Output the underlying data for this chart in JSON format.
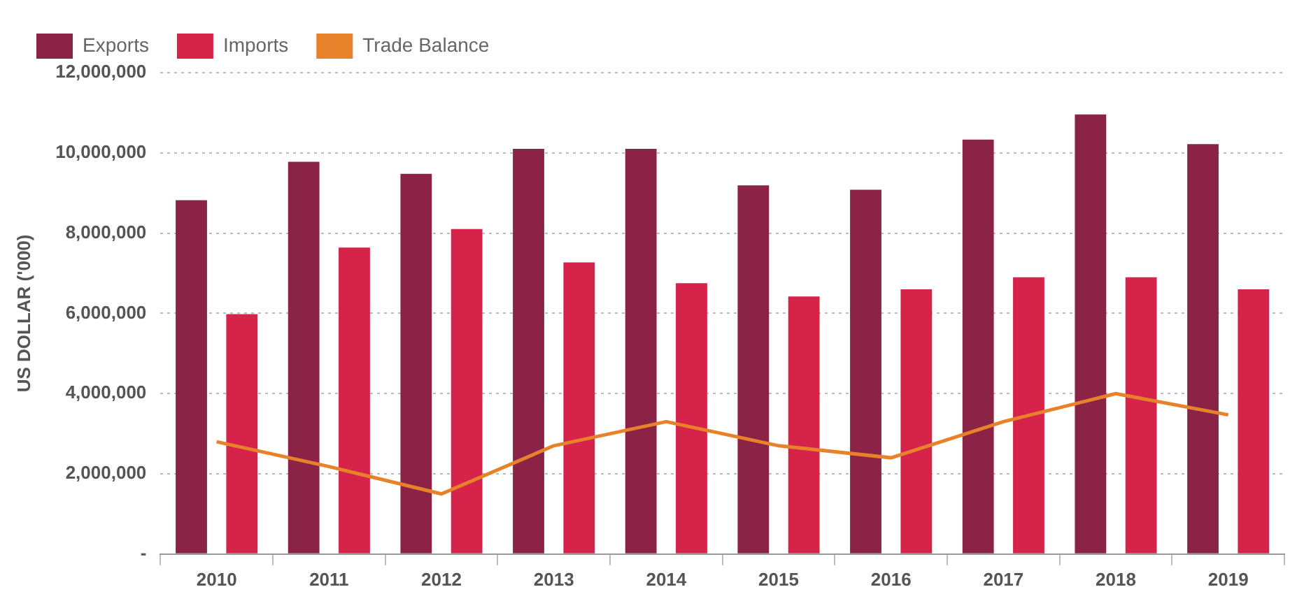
{
  "chart_data": {
    "type": "bar",
    "ylabel": "US DOLLAR ('000)",
    "categories": [
      "2010",
      "2011",
      "2012",
      "2013",
      "2014",
      "2015",
      "2016",
      "2017",
      "2018",
      "2019"
    ],
    "series": [
      {
        "name": "Exports",
        "color": "#8b2346",
        "values": [
          8820000,
          9780000,
          9480000,
          10100000,
          10100000,
          9190000,
          9080000,
          10330000,
          10960000,
          10220000
        ]
      },
      {
        "name": "Imports",
        "color": "#d6234a",
        "values": [
          5980000,
          7640000,
          8100000,
          7270000,
          6750000,
          6420000,
          6600000,
          6900000,
          6900000,
          6600000
        ]
      },
      {
        "name": "Trade Balance",
        "type": "line",
        "color": "#e8822a",
        "values": [
          2800000,
          2180000,
          1500000,
          2700000,
          3300000,
          2700000,
          2400000,
          3300000,
          4000000,
          3470000
        ]
      }
    ],
    "ylim": [
      0,
      12000000
    ],
    "yticks": [
      {
        "value": 0,
        "label": "-"
      },
      {
        "value": 2000000,
        "label": "2,000,000"
      },
      {
        "value": 4000000,
        "label": "4,000,000"
      },
      {
        "value": 6000000,
        "label": "6,000,000"
      },
      {
        "value": 8000000,
        "label": "8,000,000"
      },
      {
        "value": 10000000,
        "label": "10,000,000"
      },
      {
        "value": 12000000,
        "label": "12,000,000"
      }
    ],
    "grid": "y",
    "legend": "top left",
    "marker": "none",
    "line_style": "solid"
  }
}
